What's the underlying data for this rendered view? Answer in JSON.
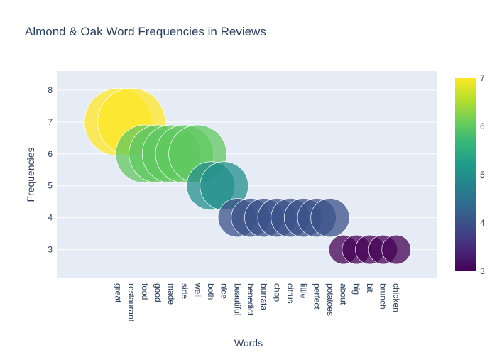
{
  "chart_data": {
    "type": "scatter",
    "title": "Almond & Oak Word Frequencies in Reviews",
    "xlabel": "Words",
    "ylabel": "Frequencies",
    "ylim": [
      2.1,
      8.6
    ],
    "yticks": [
      3,
      4,
      5,
      6,
      7,
      8
    ],
    "categories": [
      "great",
      "restaurant",
      "food",
      "good",
      "made",
      "side",
      "well",
      "both",
      "nice",
      "beautiful",
      "benedict",
      "burrata",
      "chop",
      "citrus",
      "little",
      "perfect",
      "potatoes",
      "about",
      "big",
      "bit",
      "brunch",
      "chicken"
    ],
    "values": [
      7,
      7,
      6,
      6,
      6,
      6,
      6,
      5,
      5,
      4,
      4,
      4,
      4,
      4,
      4,
      4,
      4,
      3,
      3,
      3,
      3,
      3
    ],
    "marker_size_by": "frequency",
    "colorscale": "Viridis",
    "colorbar": {
      "range": [
        3,
        7
      ],
      "ticks": [
        3,
        4,
        5,
        6,
        7
      ]
    },
    "grid": true,
    "legend": "none"
  }
}
